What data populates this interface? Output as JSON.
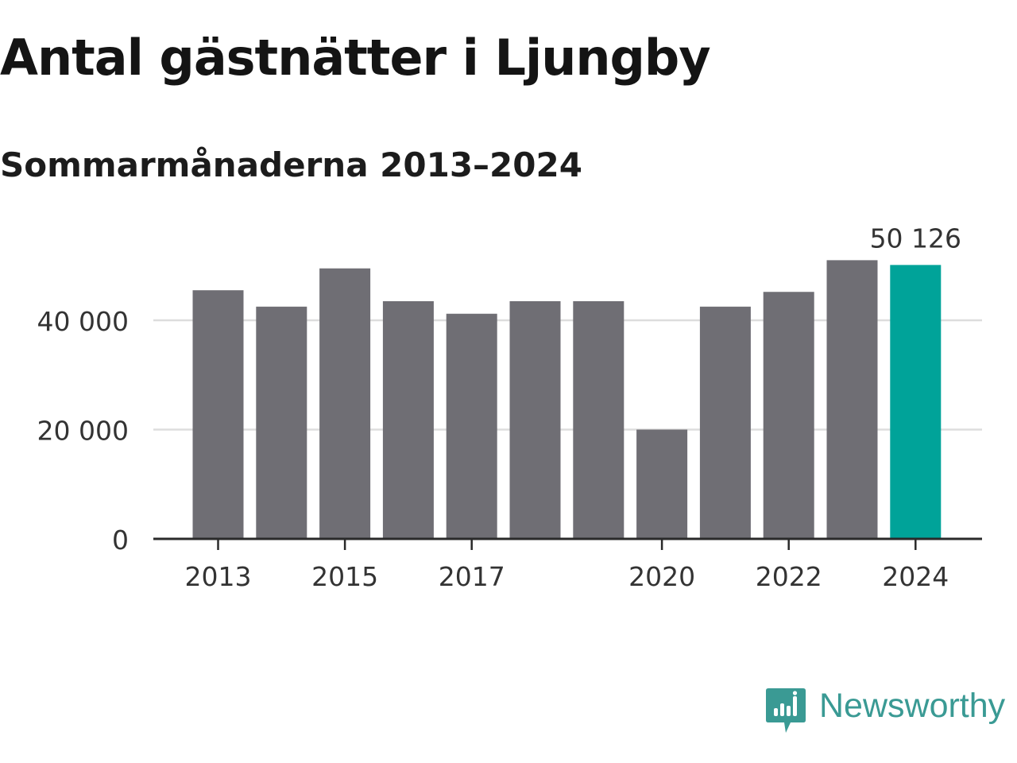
{
  "title": "Antal gästnätter i Ljungby",
  "subtitle": "Sommarmånaderna 2013–2024",
  "colors": {
    "bar": "#6f6e74",
    "highlight": "#00a399",
    "grid": "#dddddd",
    "axis": "#2a2a2a",
    "brand": "#3a9a94"
  },
  "chart_data": {
    "type": "bar",
    "title": "Antal gästnätter i Ljungby",
    "subtitle": "Sommarmånaderna 2013–2024",
    "xlabel": "",
    "ylabel": "",
    "categories": [
      2013,
      2014,
      2015,
      2016,
      2017,
      2018,
      2019,
      2020,
      2021,
      2022,
      2023,
      2024
    ],
    "values": [
      45500,
      42500,
      49500,
      43500,
      41200,
      43500,
      43500,
      20000,
      42500,
      45200,
      51000,
      50126
    ],
    "highlight_index": 11,
    "highlight_label": "50 126",
    "x_tick_labels": [
      "2013",
      "2015",
      "2017",
      "2020",
      "2022",
      "2024"
    ],
    "y_ticks": [
      0,
      20000,
      40000
    ],
    "y_tick_labels": [
      "0",
      "20 000",
      "40 000"
    ],
    "ylim": [
      0,
      54000
    ],
    "grid": true,
    "legend": "none"
  },
  "brand": {
    "name": "Newsworthy",
    "icon": "newsworthy-logo-icon"
  }
}
